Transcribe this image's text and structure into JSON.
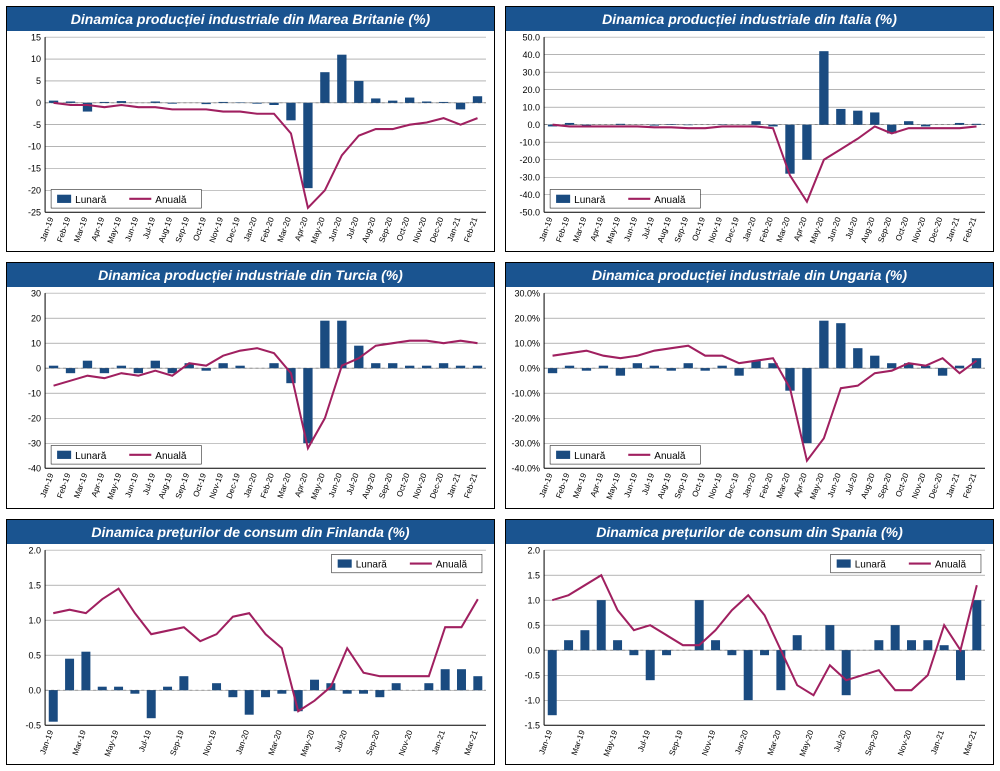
{
  "colors": {
    "title_bg": "#1a5490",
    "title_fg": "#ffffff",
    "bar": "#1a4b80",
    "line": "#a02060",
    "grid": "#888888",
    "zero_dash": "#555555",
    "panel_bg": "#ffffff",
    "panel_border": "#000000"
  },
  "legend": {
    "bar_label": "Lunară",
    "line_label": "Anuală"
  },
  "x_labels_long": [
    "Jan-19",
    "Feb-19",
    "Mar-19",
    "Apr-19",
    "May-19",
    "Jun-19",
    "Jul-19",
    "Aug-19",
    "Sep-19",
    "Oct-19",
    "Nov-19",
    "Dec-19",
    "Jan-20",
    "Feb-20",
    "Mar-20",
    "Apr-20",
    "May-20",
    "Jun-20",
    "Jul-20",
    "Aug-20",
    "Sep-20",
    "Oct-20",
    "Nov-20",
    "Dec-20",
    "Jan-21",
    "Feb-21"
  ],
  "x_labels_short": [
    "Jan-19",
    "Mar-19",
    "May-19",
    "Jul-19",
    "Sep-19",
    "Nov-19",
    "Jan-20",
    "Mar-20",
    "May-20",
    "Jul-20",
    "Sep-20",
    "Nov-20",
    "Jan-21",
    "Mar-21"
  ],
  "charts": [
    {
      "title": "Dinamica producției industriale din Marea Britanie (%)",
      "ylim": [
        -25,
        15
      ],
      "ytick_step": 5,
      "ytick_format": "int",
      "x_labels": "long",
      "legend_pos": "bottom-left",
      "bars": [
        0.5,
        0.3,
        -2.0,
        0.2,
        0.4,
        0.0,
        0.3,
        -0.2,
        0.0,
        -0.3,
        0.2,
        0.1,
        -0.2,
        -0.5,
        -4.0,
        -19.5,
        7.0,
        11.0,
        5.0,
        1.0,
        0.5,
        1.2,
        0.3,
        0.2,
        -1.5,
        1.5
      ],
      "line": [
        0.0,
        -0.5,
        -0.5,
        -1.0,
        -0.5,
        -1.0,
        -1.0,
        -1.5,
        -1.5,
        -1.5,
        -2.0,
        -2.0,
        -2.5,
        -2.5,
        -7.0,
        -24.0,
        -20.0,
        -12.0,
        -7.5,
        -6.0,
        -6.0,
        -5.0,
        -4.5,
        -3.5,
        -5.0,
        -3.5
      ]
    },
    {
      "title": "Dinamica producției industriale din Italia (%)",
      "ylim": [
        -50,
        50
      ],
      "ytick_step": 10,
      "ytick_format": "dec1",
      "x_labels": "long",
      "legend_pos": "bottom-left",
      "bars": [
        -1.0,
        1.0,
        -1.0,
        0.0,
        0.5,
        0.0,
        -0.5,
        0.3,
        -0.3,
        0.0,
        0.2,
        0.0,
        2.0,
        -1.0,
        -28.0,
        -20.0,
        42.0,
        9.0,
        8.0,
        7.0,
        -5.0,
        2.0,
        -1.0,
        0.0,
        1.0,
        0.5
      ],
      "line": [
        0.0,
        -1.0,
        -1.0,
        -1.0,
        -1.0,
        -1.0,
        -1.5,
        -1.5,
        -2.0,
        -2.0,
        -1.0,
        -1.0,
        -1.0,
        -2.0,
        -29.0,
        -44.0,
        -20.0,
        -14.0,
        -8.0,
        -1.0,
        -5.0,
        -2.0,
        -2.0,
        -2.0,
        -2.0,
        -1.0
      ]
    },
    {
      "title": "Dinamica producției industriale din Turcia (%)",
      "ylim": [
        -40,
        30
      ],
      "ytick_step": 10,
      "ytick_format": "int",
      "x_labels": "long",
      "legend_pos": "bottom-left",
      "bars": [
        1.0,
        -2.0,
        3.0,
        -2.0,
        1.0,
        -2.0,
        3.0,
        -2.0,
        2.0,
        -1.0,
        2.0,
        1.0,
        0.0,
        2.0,
        -6.0,
        -30.0,
        19.0,
        19.0,
        9.0,
        2.0,
        2.0,
        1.0,
        1.0,
        2.0,
        1.0,
        1.0
      ],
      "line": [
        -7.0,
        -5.0,
        -3.0,
        -4.0,
        -2.0,
        -3.0,
        -1.0,
        -3.0,
        2.0,
        1.0,
        5.0,
        7.0,
        8.0,
        6.0,
        -2.0,
        -32.0,
        -20.0,
        1.0,
        4.0,
        9.0,
        10.0,
        11.0,
        11.0,
        10.0,
        11.0,
        10.0
      ]
    },
    {
      "title": "Dinamica producției industriale din Ungaria (%)",
      "ylim": [
        -40,
        30
      ],
      "ytick_step": 10,
      "ytick_format": "pct1",
      "x_labels": "long",
      "legend_pos": "bottom-left",
      "bars": [
        -2.0,
        1.0,
        -1.0,
        1.0,
        -3.0,
        2.0,
        1.0,
        -1.0,
        2.0,
        -1.0,
        1.0,
        -3.0,
        3.0,
        2.0,
        -9.0,
        -30.0,
        19.0,
        18.0,
        8.0,
        5.0,
        2.0,
        2.0,
        1.0,
        -3.0,
        1.0,
        4.0
      ],
      "line": [
        5.0,
        6.0,
        7.0,
        5.0,
        4.0,
        5.0,
        7.0,
        8.0,
        9.0,
        5.0,
        5.0,
        2.0,
        3.0,
        4.0,
        -8.0,
        -37.0,
        -28.0,
        -8.0,
        -7.0,
        -2.0,
        -1.0,
        2.0,
        1.0,
        4.0,
        -2.0,
        3.0
      ]
    },
    {
      "title": "Dinamica prețurilor de consum din Finlanda (%)",
      "ylim": [
        -0.5,
        2.0
      ],
      "ytick_step": 0.5,
      "ytick_format": "dec1",
      "x_labels": "short",
      "legend_pos": "top-right",
      "bars": [
        -0.45,
        0.45,
        0.55,
        0.05,
        0.05,
        -0.05,
        -0.4,
        0.05,
        0.2,
        0.0,
        0.1,
        -0.1,
        -0.35,
        -0.1,
        -0.05,
        -0.3,
        0.15,
        0.1,
        -0.05,
        -0.05,
        -0.1,
        0.1,
        0.0,
        0.1,
        0.3,
        0.3,
        0.2
      ],
      "line": [
        1.1,
        1.15,
        1.1,
        1.3,
        1.45,
        1.1,
        0.8,
        0.85,
        0.9,
        0.7,
        0.8,
        1.05,
        1.1,
        0.8,
        0.6,
        -0.3,
        -0.15,
        0.05,
        0.6,
        0.25,
        0.2,
        0.2,
        0.2,
        0.2,
        0.9,
        0.9,
        1.3
      ]
    },
    {
      "title": "Dinamica prețurilor de consum din Spania (%)",
      "ylim": [
        -1.5,
        2.0
      ],
      "ytick_step": 0.5,
      "ytick_format": "dec1",
      "x_labels": "short",
      "legend_pos": "top-right",
      "bars": [
        -1.3,
        0.2,
        0.4,
        1.0,
        0.2,
        -0.1,
        -0.6,
        -0.1,
        0.0,
        1.0,
        0.2,
        -0.1,
        -1.0,
        -0.1,
        -0.8,
        0.3,
        0.0,
        0.5,
        -0.9,
        0.0,
        0.2,
        0.5,
        0.2,
        0.2,
        0.1,
        -0.6,
        1.0
      ],
      "line": [
        1.0,
        1.1,
        1.3,
        1.5,
        0.8,
        0.4,
        0.5,
        0.3,
        0.1,
        0.1,
        0.4,
        0.8,
        1.1,
        0.7,
        0.0,
        -0.7,
        -0.9,
        -0.3,
        -0.6,
        -0.5,
        -0.4,
        -0.8,
        -0.8,
        -0.5,
        0.5,
        0.0,
        1.3
      ]
    }
  ]
}
